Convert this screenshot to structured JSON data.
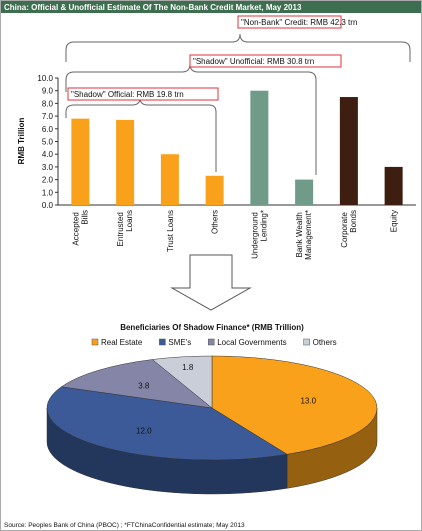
{
  "header": {
    "title": "China: Official & Unofficial Estimate Of The Non-Bank Credit Market, May 2013"
  },
  "chart_data": [
    {
      "type": "bar",
      "y_label": "RMB Trillion",
      "categories": [
        "Accepted Bills",
        "Entrusted Loans",
        "Trust Loans",
        "Others",
        "Underground Lending*",
        "Bank Wealth Management*",
        "Corporate Bonds",
        "Equity"
      ],
      "values": [
        6.8,
        6.7,
        4.0,
        2.3,
        9.0,
        2.0,
        8.5,
        3.0
      ],
      "colors": [
        "#f9a11b",
        "#f9a11b",
        "#f9a11b",
        "#f9a11b",
        "#6f9b88",
        "#6f9b88",
        "#3d1e10",
        "#3d1e10"
      ],
      "ylim": [
        0,
        10
      ],
      "yticks": [
        {
          "value": 0,
          "label": "0.0"
        },
        {
          "value": 1,
          "label": "1.0"
        },
        {
          "value": 2,
          "label": "2.0"
        },
        {
          "value": 3,
          "label": "3.0"
        },
        {
          "value": 4,
          "label": "4.0"
        },
        {
          "value": 5,
          "label": "5.0"
        },
        {
          "value": 6,
          "label": "6.0"
        },
        {
          "value": 7,
          "label": "7.0"
        },
        {
          "value": 8,
          "label": "8.0"
        },
        {
          "value": 9,
          "label": "9.0"
        },
        {
          "value": 10,
          "label": "10.0"
        }
      ],
      "annotations": [
        "\"Non-Bank\" Credit: RMB 42.3 trn",
        "\"Shadow\" Unofficial: RMB 30.8 trn",
        "\"Shadow\" Official: RMB 19.8 trn"
      ]
    },
    {
      "type": "pie",
      "title": "Beneficiaries Of Shadow Finance* (RMB Trillion)",
      "categories": [
        "Real Estate",
        "SME's",
        "Local Governments",
        "Others"
      ],
      "values": [
        13.0,
        12.0,
        3.8,
        1.8
      ],
      "value_labels": [
        "13.0",
        "12.0",
        "3.8",
        "1.8"
      ],
      "colors": [
        "#f9a11b",
        "#3b5a97",
        "#8585a8",
        "#c9ced9"
      ]
    }
  ],
  "footer": {
    "source": "Source: Peoples Bank of China (PBOC) ; *FTChinaConfidential estimate; May 2013"
  }
}
